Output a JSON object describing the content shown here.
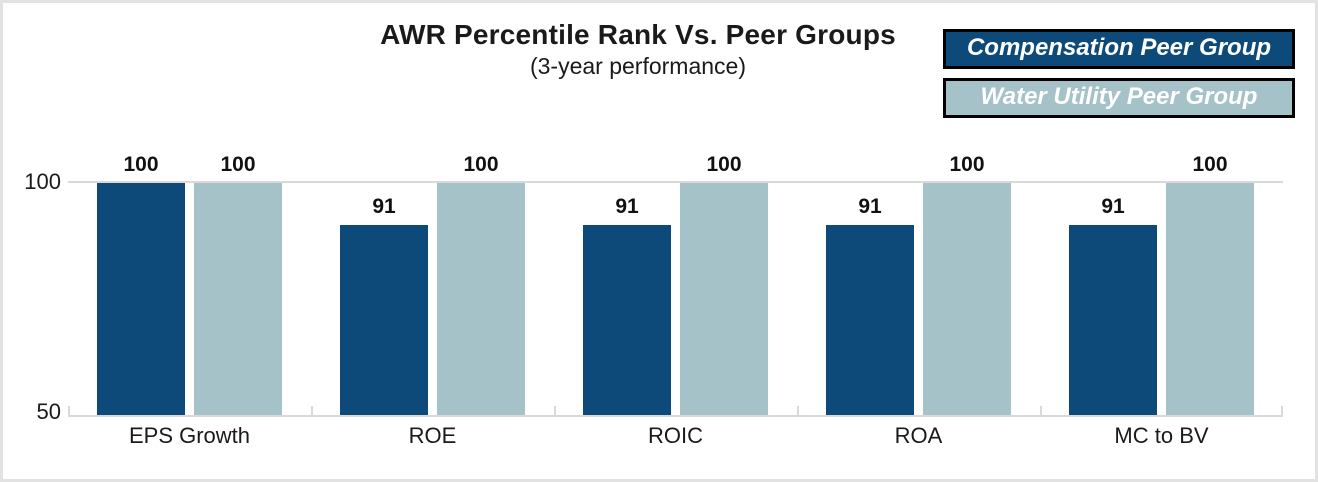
{
  "title": "AWR Percentile Rank Vs. Peer Groups",
  "subtitle": "(3-year performance)",
  "legend": [
    {
      "label": "Compensation Peer Group",
      "color": "#0d4a7a",
      "text_color": "#ffffff"
    },
    {
      "label": "Water Utility Peer Group",
      "color": "#a5c2c9",
      "text_color": "#ffffff"
    }
  ],
  "chart_data": {
    "type": "bar",
    "title": "AWR Percentile Rank Vs. Peer Groups",
    "subtitle": "(3-year performance)",
    "categories": [
      "EPS Growth",
      "ROE",
      "ROIC",
      "ROA",
      "MC to BV"
    ],
    "series": [
      {
        "name": "Compensation Peer Group",
        "color": "#0d4a7a",
        "values": [
          100,
          91,
          91,
          91,
          91
        ]
      },
      {
        "name": "Water Utility Peer Group",
        "color": "#a5c2c9",
        "values": [
          100,
          100,
          100,
          100,
          100
        ]
      }
    ],
    "ylim": [
      50,
      100
    ],
    "yticks": [
      50,
      100
    ],
    "grid": "horizontal gridlines at 50 and 100 only",
    "gridline_color": "#d9d9d9",
    "legend_position": "top-right",
    "value_labels": true
  }
}
